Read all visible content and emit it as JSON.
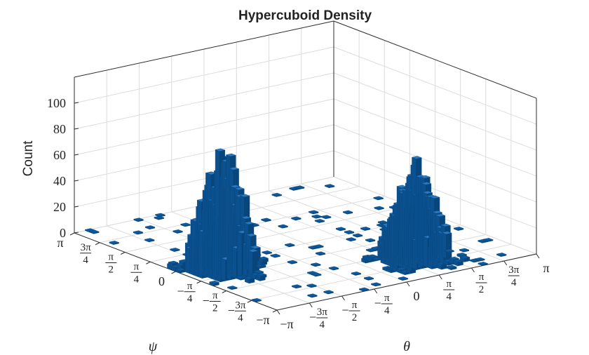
{
  "chart_data": {
    "type": "bar3d-histogram",
    "title": "Hypercuboid Density",
    "zlabel": "Count",
    "zlim": [
      0,
      120
    ],
    "z_ticks": [
      "0",
      "20",
      "40",
      "60",
      "80",
      "100"
    ],
    "x_axis_symbol": "ψ",
    "y_axis_symbol": "θ",
    "psi_ticks": [
      "π",
      "3π/4",
      "π/2",
      "π/4",
      "0",
      "−π/4",
      "−π/2",
      "−3π/4",
      "−π"
    ],
    "theta_ticks": [
      "−π",
      "−3π/4",
      "−π/2",
      "−π/4",
      "0",
      "π/4",
      "π/2",
      "3π/4",
      "π"
    ],
    "grid": true,
    "bar_color": "#0d5a9e",
    "clusters": [
      {
        "name": "",
        "center_psi": -0.45,
        "center_theta": -2.35,
        "peak_count": 110
      },
      {
        "name": "",
        "center_psi": -2.05,
        "center_theta": 1.05,
        "peak_count": 95
      }
    ]
  }
}
